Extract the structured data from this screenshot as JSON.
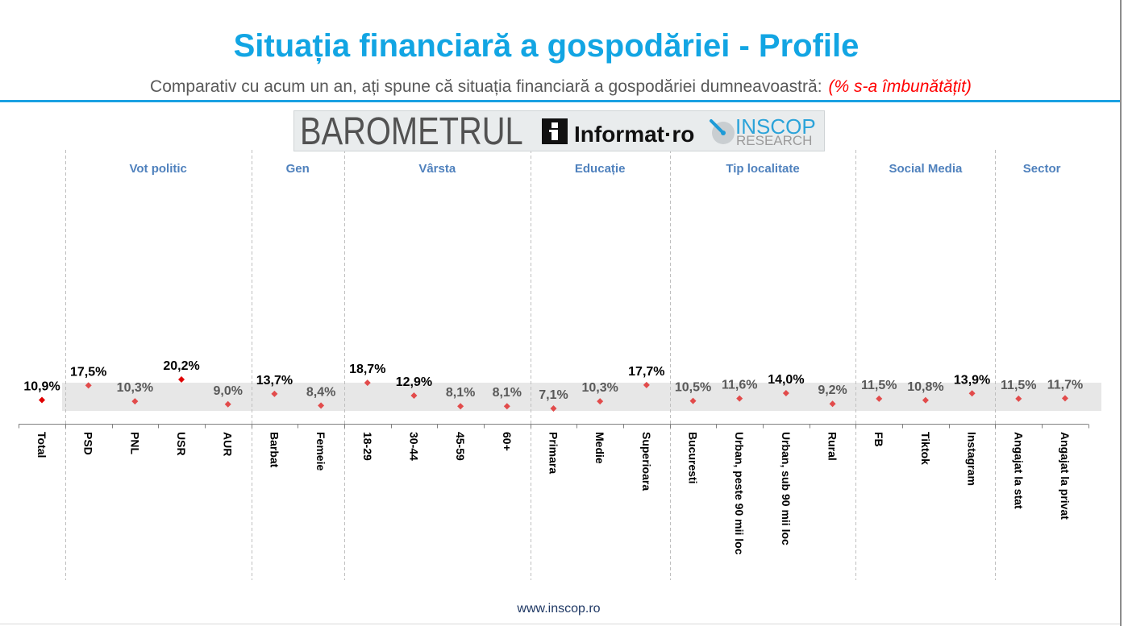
{
  "header": {
    "title": "Situația financiară a gospodăriei - Profile",
    "subtitle": "Comparativ cu acum un an, ați spune că situația financiară a gospodăriei dumneavoastră:",
    "subtitle_note": "(% s-a îmbunătățit)"
  },
  "logo": {
    "barometer": "BAROMETRUL",
    "informat_icon": "informat-i-icon",
    "informat": "Informat·ro",
    "inscop_icon": "inscop-globe-icon",
    "inscop": "INSCOP",
    "research": "RESEARCH"
  },
  "colors": {
    "title": "#12a5e3",
    "subtitle": "#595959",
    "note": "#ff0000",
    "rule": "#1ba1e2",
    "group_label": "#4f81bd",
    "band": "#e7e7e7",
    "separator": "#bfbfbf",
    "axis": "#808080",
    "category_label": "#000000",
    "footer": "#1f3864"
  },
  "chart_data": {
    "type": "scatter",
    "categories": [
      "Total",
      "PSD",
      "PNL",
      "USR",
      "AUR",
      "Barbat",
      "Femeie",
      "18-29",
      "30-44",
      "45-59",
      "60+",
      "Primara",
      "Medie",
      "Superioara",
      "Bucuresti",
      "Urban, peste 90 mii loc",
      "Urban, sub 90 mii loc",
      "Rural",
      "FB",
      "Tiktok",
      "Instagram",
      "Angajat la stat",
      "Angajat la privat"
    ],
    "values": [
      10.9,
      17.5,
      10.3,
      20.2,
      9.0,
      13.7,
      8.4,
      18.7,
      12.9,
      8.1,
      8.1,
      7.1,
      10.3,
      17.7,
      10.5,
      11.6,
      14.0,
      9.2,
      11.5,
      10.8,
      13.9,
      11.5,
      11.7
    ],
    "value_labels": [
      "10,9%",
      "17,5%",
      "10,3%",
      "20,2%",
      "9,0%",
      "13,7%",
      "8,4%",
      "18,7%",
      "12,9%",
      "8,1%",
      "8,1%",
      "7,1%",
      "10,3%",
      "17,7%",
      "10,5%",
      "11,6%",
      "14,0%",
      "9,2%",
      "11,5%",
      "10,8%",
      "13,9%",
      "11,5%",
      "11,7%"
    ],
    "groups": [
      {
        "name": "Vot politic",
        "categories": [
          "PSD",
          "PNL",
          "USR",
          "AUR"
        ]
      },
      {
        "name": "Gen",
        "categories": [
          "Barbat",
          "Femeie"
        ]
      },
      {
        "name": "Vârsta",
        "categories": [
          "18-29",
          "30-44",
          "45-59",
          "60+"
        ]
      },
      {
        "name": "Educație",
        "categories": [
          "Primara",
          "Medie",
          "Superioara"
        ]
      },
      {
        "name": "Tip localitate",
        "categories": [
          "Bucuresti",
          "Urban, peste 90 mii loc",
          "Urban, sub 90 mii loc",
          "Rural"
        ]
      },
      {
        "name": "Social Media",
        "categories": [
          "FB",
          "Tiktok",
          "Instagram"
        ]
      },
      {
        "name": "Sector",
        "categories": [
          "Angajat la stat",
          "Angajat la privat"
        ]
      }
    ],
    "marker_colors": [
      "#e00000",
      "#e24b4b",
      "#e24b4b",
      "#e00000",
      "#e24b4b",
      "#e24b4b",
      "#e24b4b",
      "#e24b4b",
      "#e24b4b",
      "#e24b4b",
      "#e24b4b",
      "#e24b4b",
      "#e24b4b",
      "#e24b4b",
      "#e24b4b",
      "#e24b4b",
      "#e24b4b",
      "#e24b4b",
      "#e24b4b",
      "#e24b4b",
      "#e24b4b",
      "#e24b4b",
      "#e24b4b"
    ],
    "label_colors": [
      "#000000",
      "#000000",
      "#595959",
      "#000000",
      "#595959",
      "#000000",
      "#595959",
      "#000000",
      "#000000",
      "#595959",
      "#595959",
      "#595959",
      "#595959",
      "#000000",
      "#595959",
      "#595959",
      "#000000",
      "#595959",
      "#595959",
      "#595959",
      "#000000",
      "#595959",
      "#595959"
    ],
    "ylim": [
      0,
      100
    ],
    "grid": false,
    "legend": false
  },
  "footer": {
    "url": "www.inscop.ro"
  }
}
